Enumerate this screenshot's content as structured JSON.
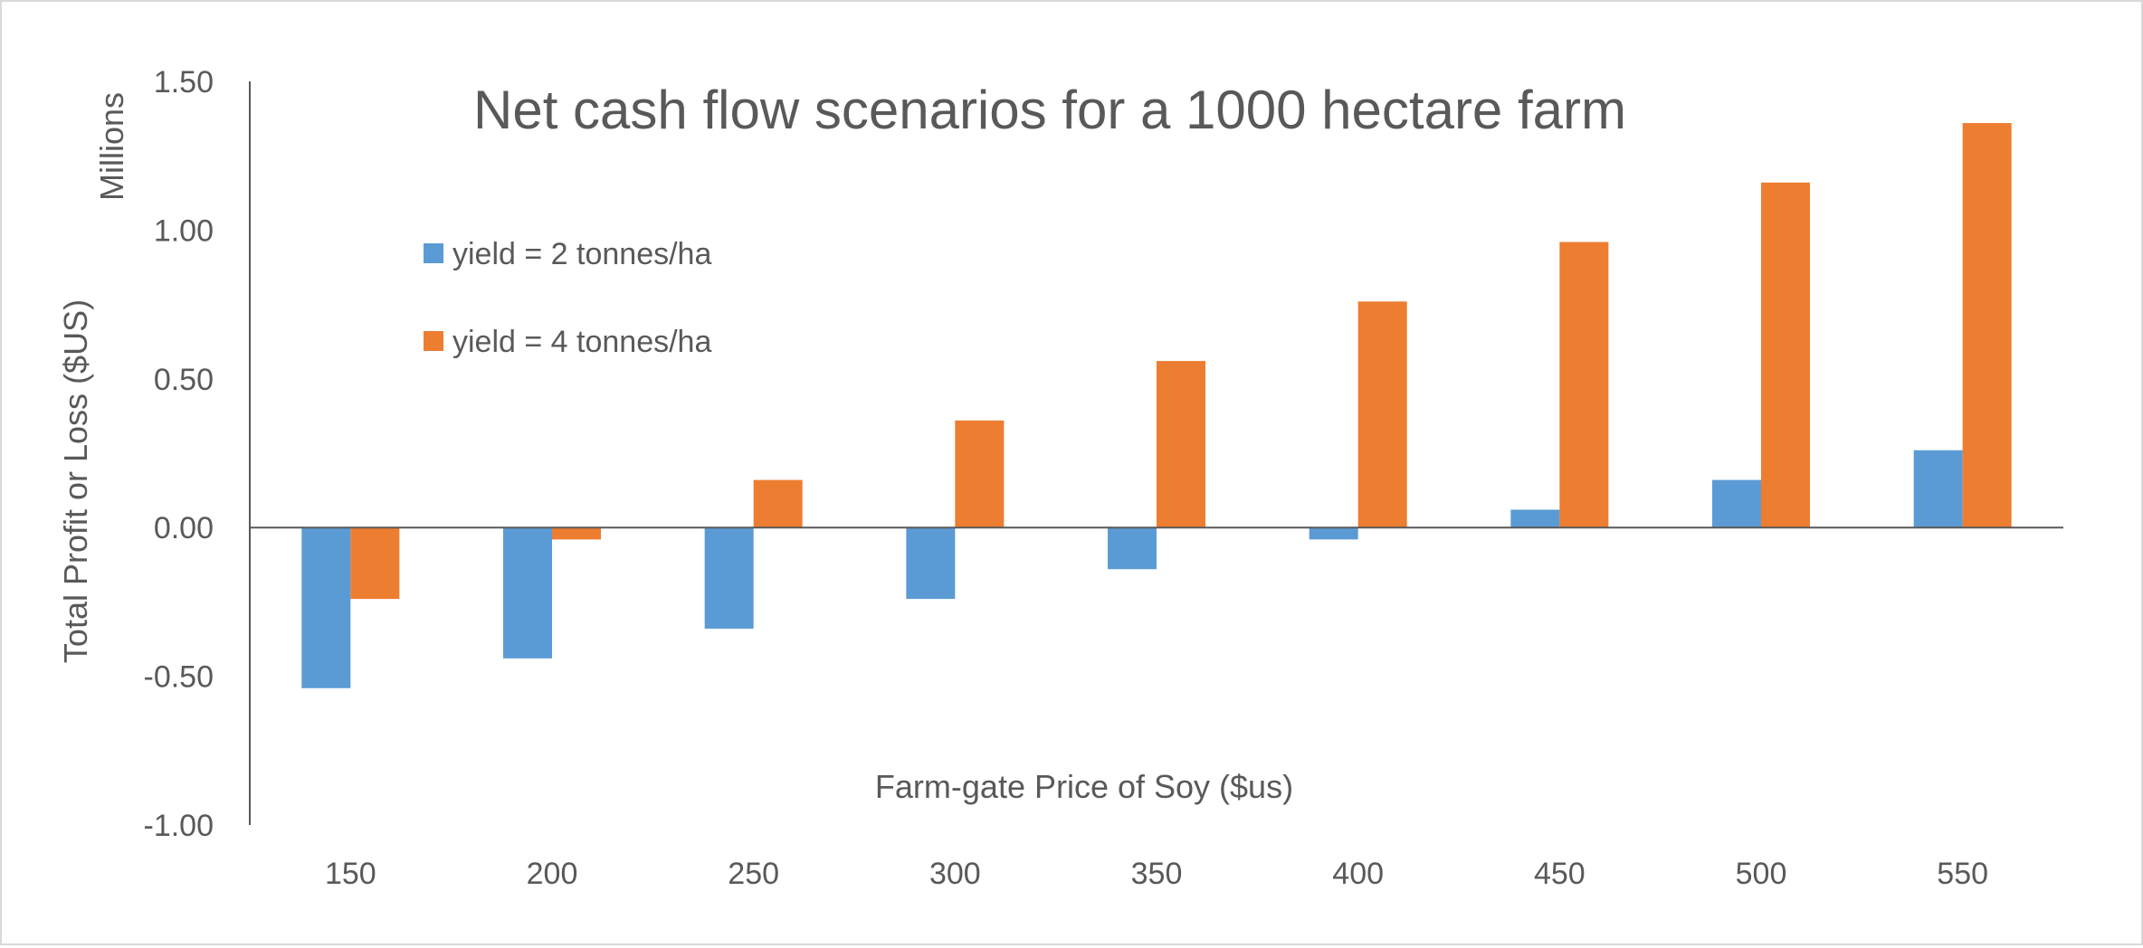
{
  "chart_data": {
    "type": "bar",
    "title": "Net cash flow scenarios for a 1000 hectare farm",
    "xlabel": "Farm-gate Price of Soy ($us)",
    "ylabel": "Total Profit or Loss ($US)",
    "yunits": "Millions",
    "categories": [
      "150",
      "200",
      "250",
      "300",
      "350",
      "400",
      "450",
      "500",
      "550"
    ],
    "yticks": [
      "1.50",
      "1.00",
      "0.50",
      "0.00",
      "-0.50",
      "-1.00"
    ],
    "ytick_values": [
      1.5,
      1.0,
      0.5,
      0.0,
      -0.5,
      -1.0
    ],
    "ylim": [
      -1.0,
      1.5
    ],
    "grid": false,
    "legend_position": "top-left",
    "series": [
      {
        "name": "yield = 2 tonnes/ha",
        "color": "#5b9bd5",
        "values": [
          -0.54,
          -0.44,
          -0.34,
          -0.24,
          -0.14,
          -0.04,
          0.06,
          0.16,
          0.26
        ]
      },
      {
        "name": "yield = 4 tonnes/ha",
        "color": "#ed7d31",
        "values": [
          -0.24,
          -0.04,
          0.16,
          0.36,
          0.56,
          0.76,
          0.96,
          1.16,
          1.36
        ]
      }
    ],
    "axis_color": "#595959"
  }
}
